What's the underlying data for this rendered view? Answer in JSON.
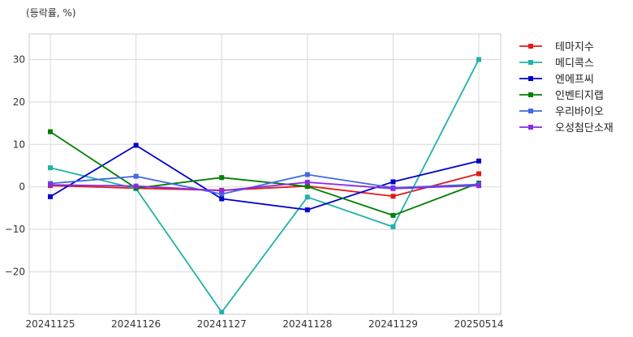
{
  "chart_data": {
    "type": "line",
    "unit_label": "(등락률, %)",
    "categories": [
      "20241125",
      "20241126",
      "20241127",
      "20241128",
      "20241129",
      "20250514"
    ],
    "ylim": [
      -30,
      36
    ],
    "yticks": [
      30,
      20,
      10,
      0,
      -10,
      -20
    ],
    "ytick_labels": [
      "30",
      "20",
      "10",
      "0",
      "−10",
      "−20"
    ],
    "grid": true,
    "legend_position": "right",
    "series": [
      {
        "name": "테마지수",
        "color": "#e31a1c",
        "values": [
          0.3,
          -0.3,
          -0.8,
          0.2,
          -2.2,
          3.1
        ]
      },
      {
        "name": "메디콕스",
        "color": "#20b2aa",
        "values": [
          4.5,
          -0.4,
          -29.5,
          -2.4,
          -9.4,
          30.0
        ]
      },
      {
        "name": "엔에프씨",
        "color": "#0000cd",
        "values": [
          -2.3,
          9.8,
          -2.8,
          -5.4,
          1.2,
          6.1
        ]
      },
      {
        "name": "인벤티지랩",
        "color": "#008000",
        "values": [
          13.0,
          -0.3,
          2.2,
          0.1,
          -6.7,
          0.9
        ]
      },
      {
        "name": "우리바이오",
        "color": "#4169e1",
        "values": [
          0.8,
          2.5,
          -1.7,
          2.9,
          -0.2,
          0.6
        ]
      },
      {
        "name": "오성첨단소재",
        "color": "#8a2be2",
        "values": [
          0.5,
          0.2,
          -0.9,
          1.1,
          -0.4,
          0.3
        ]
      }
    ]
  }
}
